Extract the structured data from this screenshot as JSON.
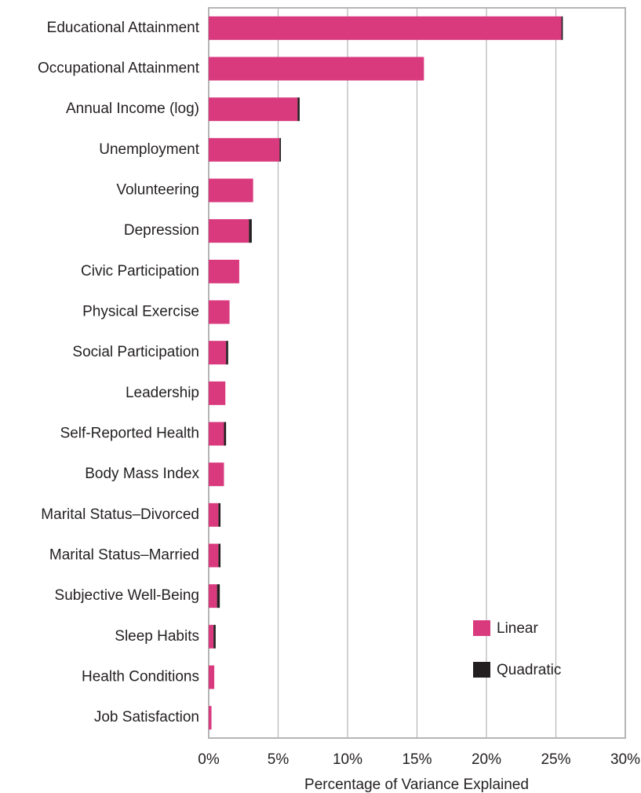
{
  "chart_data": {
    "type": "stacked-barh",
    "x_label": "Percentage of Variance Explained",
    "categories": [
      "Educational Attainment",
      "Occupational Attainment",
      "Annual Income (log)",
      "Unemployment",
      "Volunteering",
      "Depression",
      "Civic Participation",
      "Physical Exercise",
      "Social Participation",
      "Leadership",
      "Self-Reported Health",
      "Body Mass Index",
      "Marital Status–Divorced",
      "Marital Status–Married",
      "Subjective Well-Being",
      "Sleep Habits",
      "Health Conditions",
      "Job Satisfaction"
    ],
    "series": [
      {
        "name": "Linear",
        "color": "#d93a7e",
        "values": [
          25.4,
          15.5,
          6.4,
          5.1,
          3.2,
          2.9,
          2.2,
          1.5,
          1.25,
          1.2,
          1.1,
          1.1,
          0.7,
          0.7,
          0.6,
          0.35,
          0.4,
          0.2
        ]
      },
      {
        "name": "Quadratic",
        "color": "#231f20",
        "values": [
          0.1,
          0,
          0.15,
          0.1,
          0,
          0.2,
          0,
          0,
          0.15,
          0,
          0.15,
          0,
          0.15,
          0.15,
          0.2,
          0.15,
          0,
          0
        ]
      }
    ],
    "xlim": [
      0,
      30
    ],
    "xticks": [
      {
        "value": 0,
        "label": "0%"
      },
      {
        "value": 5,
        "label": "5%"
      },
      {
        "value": 10,
        "label": "10%"
      },
      {
        "value": 15,
        "label": "15%"
      },
      {
        "value": 20,
        "label": "20%"
      },
      {
        "value": 25,
        "label": "25%"
      },
      {
        "value": 30,
        "label": "30%"
      }
    ],
    "grid": true,
    "legend": "lower right"
  }
}
